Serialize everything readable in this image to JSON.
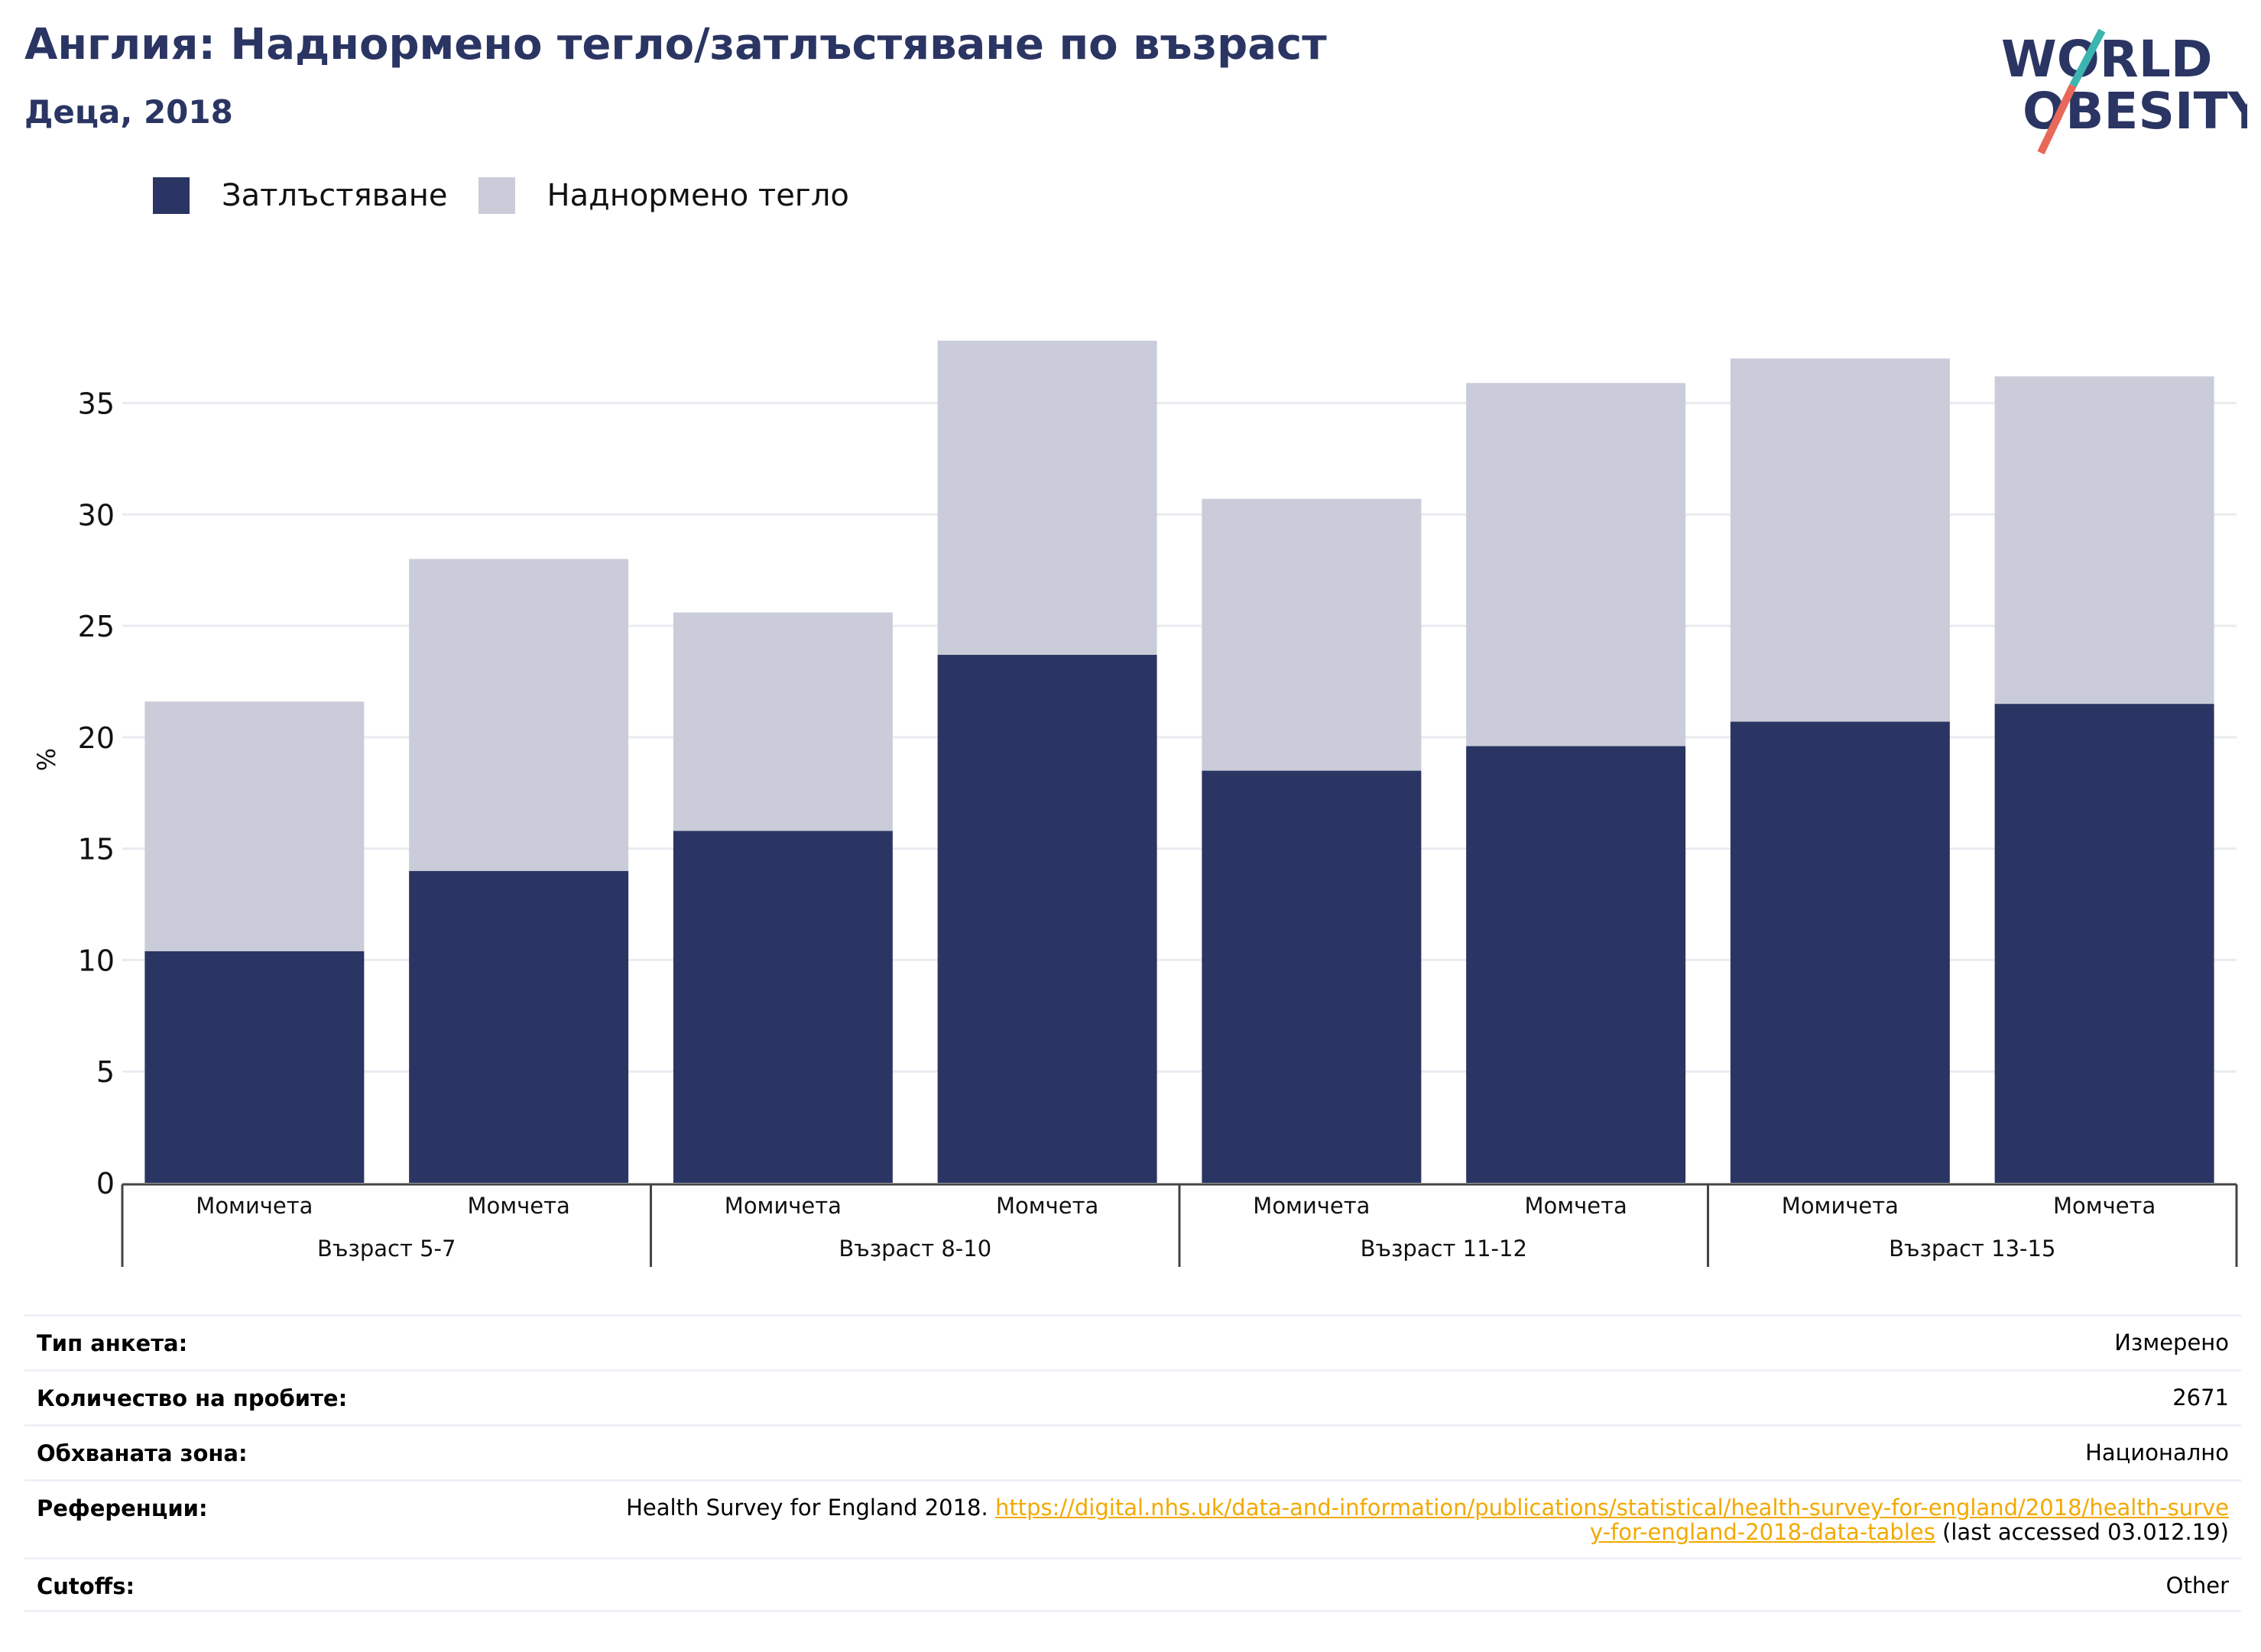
{
  "header": {
    "title": "Англия: Наднормено тегло/затлъстяване по възраст",
    "subtitle": "Деца, 2018"
  },
  "logo": {
    "line1": "WORLD",
    "line2": "OBESITY",
    "colors": {
      "text": "#2a3563",
      "slash_teal": "#3cb5b0",
      "slash_coral": "#e8685a"
    }
  },
  "legend": [
    {
      "label": "Затлъстяване",
      "color": "#2a3563"
    },
    {
      "label": "Наднормено тегло",
      "color": "#cacdd9"
    }
  ],
  "chart_data": {
    "type": "bar",
    "stacked": true,
    "ylabel": "%",
    "ylim": [
      0,
      38
    ],
    "yticks": [
      0,
      5,
      10,
      15,
      20,
      25,
      30,
      35
    ],
    "grid": true,
    "legend_position": "top-left",
    "categories": [
      "Момичета",
      "Момчета",
      "Момичета",
      "Момчета",
      "Момичета",
      "Момчета",
      "Момичета",
      "Момчета"
    ],
    "groups": [
      {
        "label": "Възраст 5-7",
        "categories": [
          0,
          1
        ]
      },
      {
        "label": "Възраст 8-10",
        "categories": [
          2,
          3
        ]
      },
      {
        "label": "Възраст 11-12",
        "categories": [
          4,
          5
        ]
      },
      {
        "label": "Възраст 13-15",
        "categories": [
          6,
          7
        ]
      }
    ],
    "series": [
      {
        "name": "Затлъстяване",
        "color": "#2a3563",
        "values": [
          10.4,
          14.0,
          15.8,
          23.7,
          18.5,
          19.6,
          20.7,
          21.5
        ]
      },
      {
        "name": "Наднормено тегло",
        "color": "#cacdd9",
        "values": [
          11.2,
          14.0,
          9.8,
          14.1,
          12.2,
          16.3,
          16.3,
          14.7
        ]
      }
    ]
  },
  "info": {
    "survey_type": {
      "label": "Тип анкета:",
      "value": "Измерено"
    },
    "sample_size": {
      "label": "Количество на пробите:",
      "value": "2671"
    },
    "area": {
      "label": "Обхваната зона:",
      "value": "Национално"
    },
    "references": {
      "label": "Референции:",
      "prefix": "Health Survey for England 2018.",
      "link": "https://digital.nhs.uk/data-and-information/publications/statistical/health-survey-for-england/2018/health-survey-for-england-2018-data-tables",
      "suffix": "(last accessed 03.012.19)"
    },
    "cutoffs": {
      "label": "Cutoffs:",
      "value": "Other"
    }
  }
}
